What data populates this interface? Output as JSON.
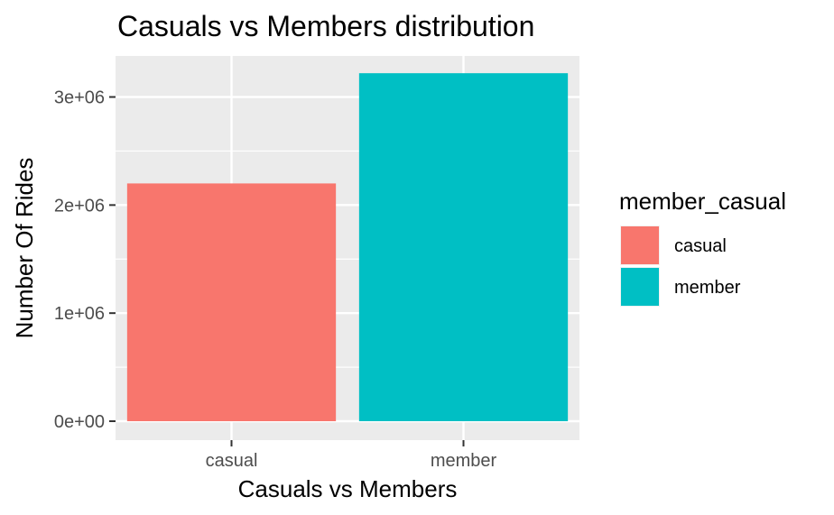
{
  "chart_data": {
    "type": "bar",
    "title": "Casuals vs Members distribution",
    "xlabel": "Casuals vs Members",
    "ylabel": "Number Of Rides",
    "categories": [
      "casual",
      "member"
    ],
    "values": [
      2200000,
      3220000
    ],
    "colors": [
      "#F8766D",
      "#00BFC4"
    ],
    "ylim": [
      0,
      3380000
    ],
    "yticks": [
      0,
      1000000,
      2000000,
      3000000
    ],
    "ytick_labels": [
      "0e+00",
      "1e+06",
      "2e+06",
      "3e+06"
    ],
    "grid": true,
    "legend": {
      "title": "member_casual",
      "position": "right",
      "items": [
        {
          "label": "casual",
          "color": "#F8766D"
        },
        {
          "label": "member",
          "color": "#00BFC4"
        }
      ]
    },
    "panel_background": "#EBEBEB"
  }
}
